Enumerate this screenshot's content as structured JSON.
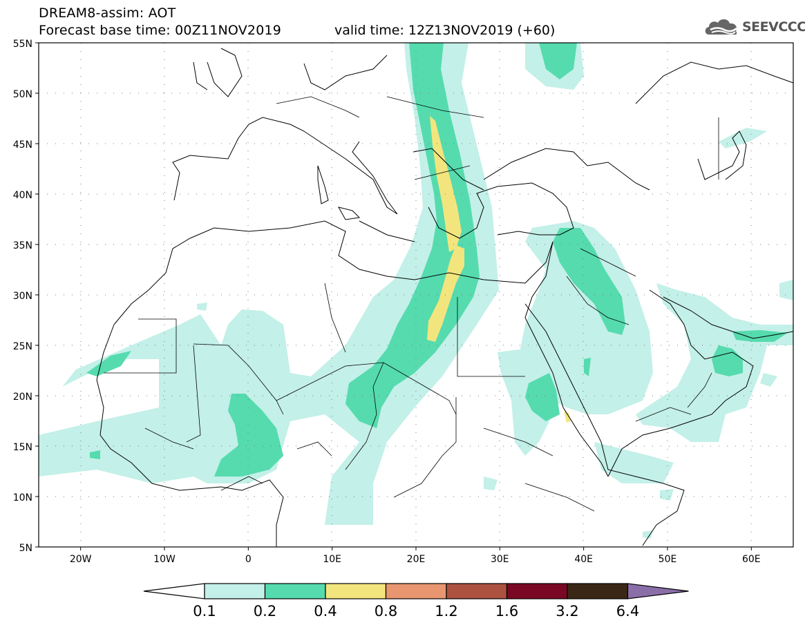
{
  "header": {
    "title": "DREAM8-assim: AOT",
    "base_time": "Forecast base time: 00Z11NOV2019",
    "valid_time": "valid time: 12Z13NOV2019 (+60)"
  },
  "logo": {
    "text": "SEEVCCC",
    "icon": "cloud-icon"
  },
  "map": {
    "projection": "lat-lon",
    "lon_range": [
      -25,
      65
    ],
    "lat_range": [
      5,
      55
    ],
    "lat_labels": [
      "55N",
      "50N",
      "45N",
      "40N",
      "35N",
      "30N",
      "25N",
      "20N",
      "15N",
      "10N",
      "5N"
    ],
    "lon_labels": [
      "20W",
      "10W",
      "0",
      "10E",
      "20E",
      "30E",
      "40E",
      "50E",
      "60E"
    ],
    "gridlines": "dotted"
  },
  "colorbar": {
    "labels": [
      "0.1",
      "0.2",
      "0.4",
      "0.8",
      "1.2",
      "1.6",
      "3.2",
      "6.4"
    ],
    "colors": [
      "#c3f0e8",
      "#55dbae",
      "#f3e57e",
      "#e89670",
      "#ad5140",
      "#7a0825",
      "#3b2715",
      "#8a6ea8"
    ]
  }
}
